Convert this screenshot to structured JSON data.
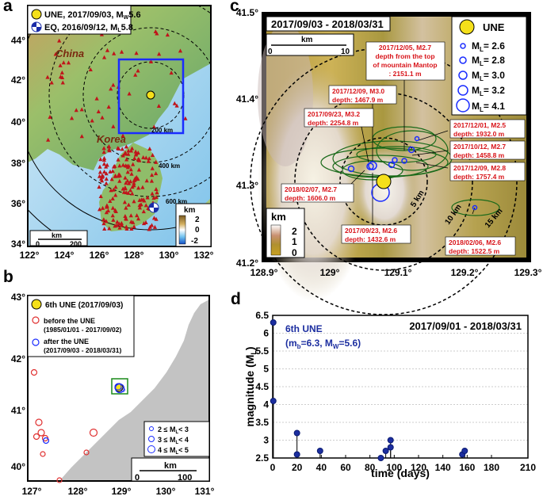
{
  "panel_a": {
    "letter": "a",
    "legend": {
      "une_label": "UNE, 2017/09/03, M",
      "une_sub": "W",
      "une_mag": "5.6",
      "eq_label": "EQ, 2016/09/12, M",
      "eq_sub": "L",
      "eq_mag": "5.8"
    },
    "x_ticks": [
      "122°",
      "124°",
      "126°",
      "128°",
      "130°",
      "132°"
    ],
    "y_ticks": [
      "44°",
      "42°",
      "40°",
      "38°",
      "36°",
      "34°"
    ],
    "labels": {
      "china": "China",
      "korea": "Korea",
      "r200": "200 km",
      "r400": "400 km",
      "r600": "600 km"
    },
    "scalebar": {
      "unit": "km",
      "zero": "0",
      "max": "200"
    },
    "colorbar": {
      "unit": "km",
      "ticks": [
        "2",
        "0",
        "-2"
      ]
    }
  },
  "panel_b": {
    "letter": "b",
    "title": "6th UNE (2017/09/03)",
    "before_label": "before the UNE",
    "before_range": "(1985/01/01 - 2017/09/02)",
    "after_label": "after the UNE",
    "after_range": "(2017/09/03 - 2018/03/31)",
    "x_ticks": [
      "127°",
      "128°",
      "129°",
      "130°",
      "131°"
    ],
    "y_ticks": [
      "43°",
      "42°",
      "41°",
      "40°"
    ],
    "mag_legend": [
      "2 ≤ M",
      "3 ≤ M",
      "4 ≤ M"
    ],
    "mag_legend_tail": [
      "< 3",
      "< 4",
      "< 5"
    ],
    "scalebar": {
      "unit": "km",
      "zero": "0",
      "max": "100"
    }
  },
  "panel_c": {
    "letter": "c",
    "title": "2017/09/03 - 2018/03/31",
    "une": "UNE",
    "mag_legend": [
      "= 2.6",
      "= 2.8",
      "= 3.0",
      "= 3.2",
      "= 4.1"
    ],
    "x_ticks": [
      "128.9°",
      "129°",
      "129.1°",
      "129.2°",
      "129.3°"
    ],
    "y_ticks": [
      "41.5°",
      "41.4°",
      "41.3°",
      "41.2°"
    ],
    "scalebar": {
      "unit": "km",
      "zero": "0",
      "max": "10"
    },
    "rings": [
      "5 km",
      "10 km",
      "15 km"
    ],
    "colorbar": {
      "unit": "km",
      "ticks": [
        "2",
        "1",
        "0"
      ]
    },
    "annotations": [
      {
        "l1": "2017/12/05, M2.7",
        "l2": "depth from the top",
        "l3": "of mountain Mantop",
        "l4": ": 2151.1 m"
      },
      {
        "l1": "2017/12/09, M3.0",
        "l2": "depth: 1467.9 m"
      },
      {
        "l1": "2017/09/23, M3.2",
        "l2": "depth: 2254.8 m"
      },
      {
        "l1": "2017/12/01, M2.5",
        "l2": "depth: 1932.0 m"
      },
      {
        "l1": "2017/10/12, M2.7",
        "l2": "depth: 1458.8 m"
      },
      {
        "l1": "2017/12/09, M2.8",
        "l2": "depth: 1757.4 m"
      },
      {
        "l1": "2018/02/07, M2.7",
        "l2": "depth: 1606.0 m"
      },
      {
        "l1": "2017/09/23, M2.6",
        "l2": "depth: 1432.6 m"
      },
      {
        "l1": "2018/02/06, M2.6",
        "l2": "depth: 1522.5 m"
      }
    ]
  },
  "chart_data": {
    "type": "scatter",
    "title": "2017/09/01 - 2018/03/31",
    "annotation_l1": "6th UNE",
    "annotation_l2": "(m",
    "annotation_l2_b": "b",
    "annotation_l2_mid": "=6.3, M",
    "annotation_l2_w": "W",
    "annotation_l2_end": "=5.6)",
    "xlabel": "time (days)",
    "ylabel": "magnitude (M",
    "ylabel_sub": "L",
    "ylabel_end": ")",
    "xlim": [
      0,
      210
    ],
    "ylim": [
      2.5,
      6.5
    ],
    "x_ticks": [
      0,
      20,
      40,
      60,
      80,
      100,
      120,
      140,
      160,
      180,
      210
    ],
    "y_ticks": [
      "2.5",
      "3",
      "3.5",
      "4",
      "4.5",
      "5",
      "5.5",
      "6",
      "6.5"
    ],
    "points": [
      {
        "x": 0.5,
        "y": 6.3
      },
      {
        "x": 0.5,
        "y": 4.1
      },
      {
        "x": 20,
        "y": 3.2
      },
      {
        "x": 20,
        "y": 2.6
      },
      {
        "x": 39,
        "y": 2.7
      },
      {
        "x": 89,
        "y": 2.5
      },
      {
        "x": 93,
        "y": 2.7
      },
      {
        "x": 97,
        "y": 3.0
      },
      {
        "x": 97,
        "y": 2.8
      },
      {
        "x": 156,
        "y": 2.6
      },
      {
        "x": 158,
        "y": 2.7
      }
    ],
    "marker_color": "#1c2ea0",
    "grid": true
  }
}
